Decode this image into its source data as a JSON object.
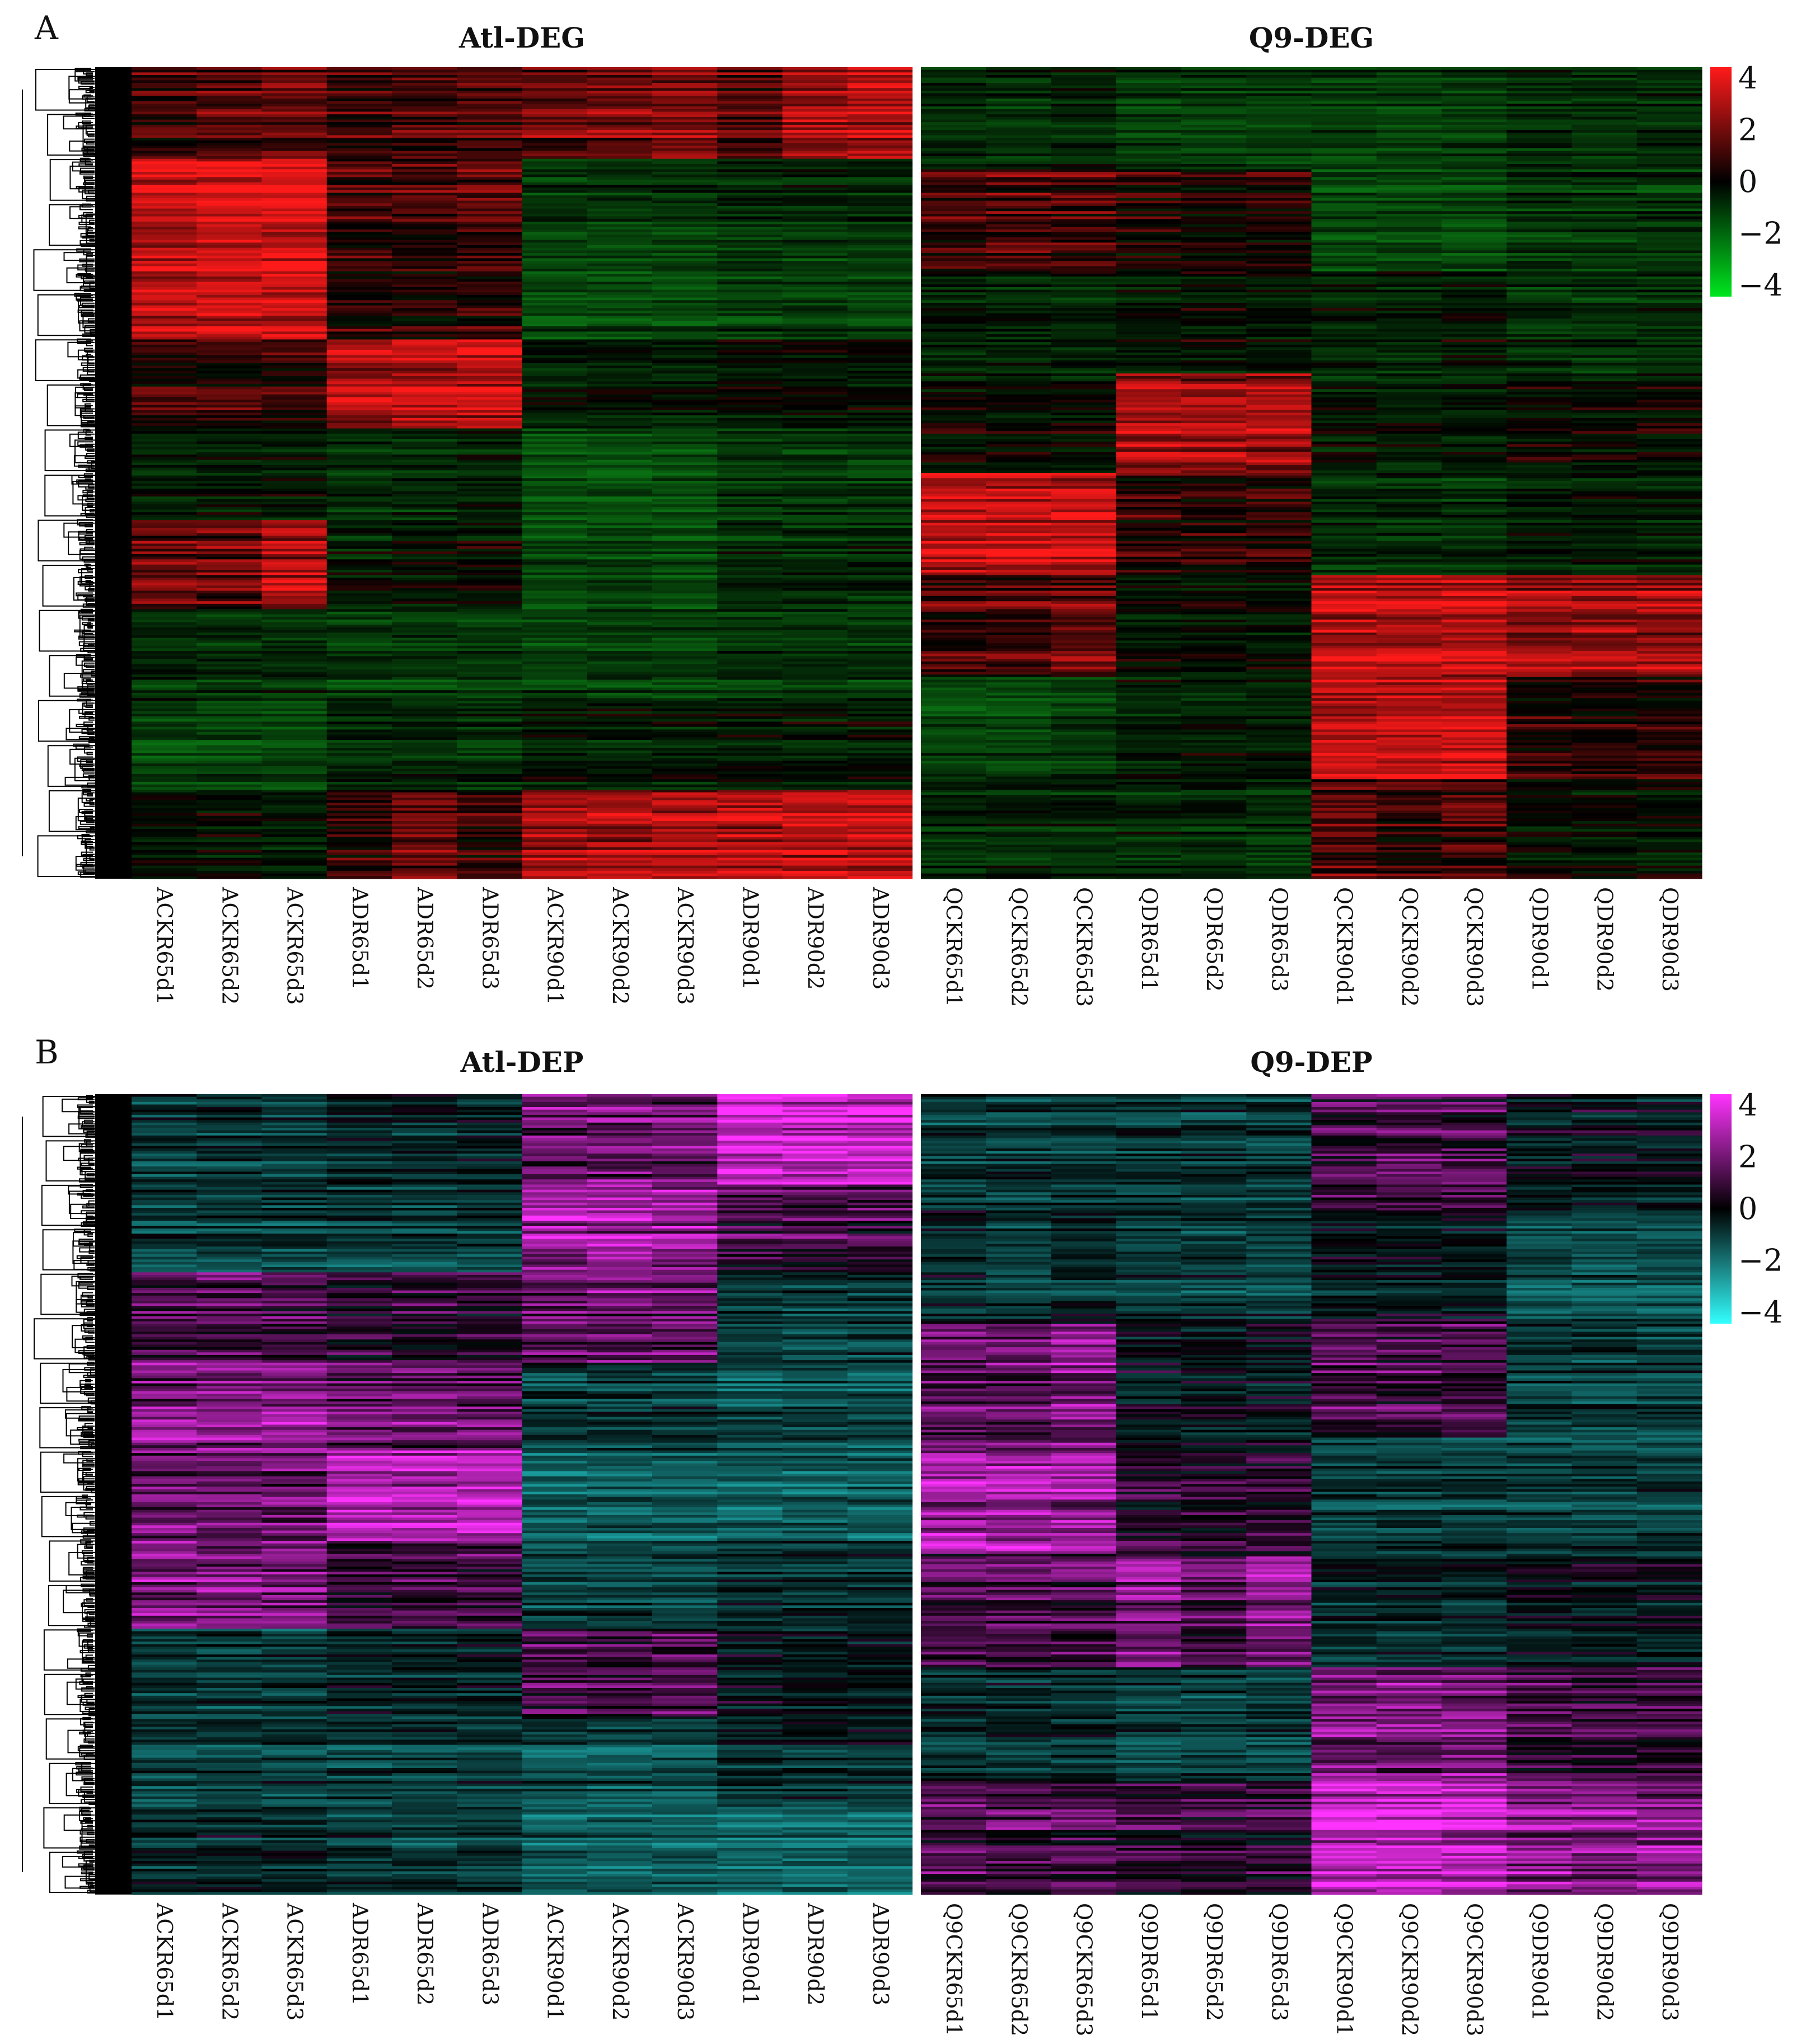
{
  "panels": [
    {
      "id": "A",
      "letter": "A",
      "palette": "red-green",
      "colors": {
        "high": "#ff1a1a",
        "mid": "#000000",
        "low": "#00e61e",
        "base_low": "#0a6e12"
      },
      "chart_data": {
        "type": "heatmap",
        "titles": [
          "Atl-DEG",
          "Q9-DEG"
        ],
        "columns_left": [
          "ACKR65d1",
          "ACKR65d2",
          "ACKR65d3",
          "ADR65d1",
          "ADR65d2",
          "ADR65d3",
          "ACKR90d1",
          "ACKR90d2",
          "ACKR90d3",
          "ADR90d1",
          "ADR90d2",
          "ADR90d3"
        ],
        "columns_right": [
          "QCKR65d1",
          "QCKR65d2",
          "QCKR65d3",
          "QDR65d1",
          "QDR65d2",
          "QDR65d3",
          "QCKR90d1",
          "QCKR90d2",
          "QCKR90d3",
          "QDR90d1",
          "QDR90d2",
          "QDR90d3"
        ],
        "color_scale": {
          "min": -4,
          "max": 4,
          "ticks": [
            "4",
            "2",
            "0",
            "−2",
            "−4"
          ]
        },
        "row_clusters_left": [
          [
            1.0,
            1.2,
            1.5,
            0.8,
            1.0,
            1.2,
            1.5,
            1.8,
            2.0,
            1.2,
            2.5,
            2.8
          ],
          [
            3.0,
            3.1,
            3.3,
            0.8,
            1.0,
            1.2,
            -2.0,
            -2.0,
            -2.0,
            -1.5,
            -1.5,
            -1.5
          ],
          [
            3.2,
            3.2,
            3.5,
            0.5,
            0.6,
            0.8,
            -2.5,
            -2.5,
            -2.5,
            -2.0,
            -2.0,
            -2.0
          ],
          [
            0.5,
            0.6,
            0.6,
            2.5,
            2.8,
            3.0,
            -1.0,
            -1.0,
            -1.0,
            -0.5,
            -0.5,
            -0.5
          ],
          [
            -1.0,
            -1.0,
            -1.0,
            -1.5,
            -1.5,
            -1.2,
            -2.8,
            -2.8,
            -2.8,
            -2.0,
            -2.0,
            -2.0
          ],
          [
            1.5,
            1.5,
            2.5,
            -1.0,
            -0.8,
            -0.5,
            -2.5,
            -2.5,
            -2.5,
            -1.5,
            -1.5,
            -1.5
          ],
          [
            -1.5,
            -1.5,
            -1.5,
            -2.0,
            -2.0,
            -2.0,
            -2.2,
            -2.2,
            -2.2,
            -1.8,
            -1.8,
            -1.8
          ],
          [
            -2.5,
            -2.5,
            -2.5,
            -1.5,
            -1.5,
            -1.5,
            -1.0,
            -1.0,
            -1.0,
            -0.8,
            -0.8,
            -0.8
          ],
          [
            -0.5,
            -0.5,
            -1.0,
            0.5,
            1.5,
            0.8,
            2.5,
            2.5,
            2.5,
            2.8,
            3.0,
            3.0
          ]
        ],
        "row_clusters_right": [
          [
            -1.5,
            -1.5,
            -1.2,
            -2.0,
            -2.0,
            -2.0,
            -2.0,
            -2.0,
            -2.0,
            -1.5,
            -1.5,
            -1.5
          ],
          [
            1.0,
            1.2,
            1.0,
            0.3,
            0.2,
            0.3,
            -2.5,
            -2.5,
            -2.5,
            -1.8,
            -1.8,
            -1.8
          ],
          [
            -1.0,
            -1.0,
            -1.0,
            -0.5,
            -0.5,
            -0.5,
            -1.0,
            -1.0,
            -0.5,
            -1.5,
            -1.5,
            -1.5
          ],
          [
            -0.5,
            -0.5,
            -0.5,
            2.5,
            2.5,
            2.5,
            -1.0,
            -1.0,
            -1.0,
            -0.5,
            -0.5,
            -0.5
          ],
          [
            3.0,
            3.0,
            3.2,
            0.5,
            0.5,
            0.5,
            -1.5,
            -1.5,
            -1.5,
            -1.0,
            -1.0,
            -1.0
          ],
          [
            1.0,
            1.0,
            1.5,
            -0.5,
            -0.5,
            -0.5,
            3.0,
            3.0,
            3.0,
            2.5,
            2.5,
            2.5
          ],
          [
            -2.5,
            -2.5,
            -2.0,
            -1.0,
            -1.0,
            -1.0,
            3.0,
            3.0,
            3.2,
            0.5,
            0.5,
            0.5
          ],
          [
            -1.5,
            -1.5,
            -1.5,
            -1.5,
            -1.5,
            -1.8,
            1.0,
            0.5,
            1.0,
            -0.5,
            -0.5,
            -0.5
          ]
        ]
      }
    },
    {
      "id": "B",
      "letter": "B",
      "palette": "magenta-cyan",
      "colors": {
        "high": "#ff33ff",
        "mid": "#000000",
        "low": "#33ffff",
        "base_low": "#1a9a9a"
      },
      "chart_data": {
        "type": "heatmap",
        "titles": [
          "Atl-DEP",
          "Q9-DEP"
        ],
        "columns_left": [
          "ACKR65d1",
          "ACKR65d2",
          "ACKR65d3",
          "ADR65d1",
          "ADR65d2",
          "ADR65d3",
          "ACKR90d1",
          "ACKR90d2",
          "ACKR90d3",
          "ADR90d1",
          "ADR90d2",
          "ADR90d3"
        ],
        "columns_right": [
          "Q9CKR65d1",
          "Q9CKR65d2",
          "Q9CKR65d3",
          "Q9DR65d1",
          "Q9DR65d2",
          "Q9DR65d3",
          "Q9CKR90d1",
          "Q9CKR90d2",
          "Q9CKR90d3",
          "Q9DR90d1",
          "Q9DR90d2",
          "Q9DR90d3"
        ],
        "color_scale": {
          "min": -4,
          "max": 4,
          "ticks": [
            "4",
            "2",
            "0",
            "−2",
            "−4"
          ]
        },
        "row_clusters_left": [
          [
            -1.5,
            -1.5,
            -1.5,
            -1.0,
            -1.0,
            -1.0,
            1.5,
            1.5,
            1.5,
            3.0,
            3.0,
            3.0
          ],
          [
            -1.5,
            -1.5,
            -1.5,
            -1.5,
            -1.5,
            -1.5,
            2.5,
            2.5,
            2.5,
            1.0,
            1.0,
            1.0
          ],
          [
            1.0,
            1.2,
            1.0,
            0.5,
            0.5,
            0.5,
            1.5,
            1.5,
            1.5,
            -1.5,
            -1.5,
            -1.5
          ],
          [
            2.0,
            2.0,
            2.0,
            1.5,
            1.5,
            1.5,
            -1.5,
            -1.5,
            -1.5,
            -2.0,
            -2.0,
            -2.0
          ],
          [
            1.5,
            1.5,
            1.5,
            2.8,
            2.8,
            2.8,
            -2.5,
            -2.5,
            -2.5,
            -2.5,
            -2.5,
            -2.5
          ],
          [
            2.0,
            2.0,
            2.0,
            1.0,
            1.0,
            1.0,
            -1.5,
            -1.5,
            -1.5,
            -1.0,
            -1.0,
            -1.0
          ],
          [
            -1.5,
            -1.5,
            -1.5,
            -1.0,
            -1.0,
            -1.0,
            1.0,
            1.0,
            1.2,
            -0.5,
            -0.5,
            -0.5
          ],
          [
            -1.5,
            -1.5,
            -1.5,
            -1.5,
            -1.5,
            -1.5,
            -2.0,
            -2.0,
            -2.0,
            -1.0,
            -1.0,
            -1.0
          ],
          [
            -1.0,
            -1.0,
            -1.0,
            -1.5,
            -1.5,
            -1.5,
            -2.5,
            -2.5,
            -2.5,
            -2.8,
            -2.8,
            -2.8
          ]
        ],
        "row_clusters_right": [
          [
            -1.5,
            -1.5,
            -1.5,
            -1.5,
            -1.5,
            -1.5,
            1.0,
            1.0,
            1.0,
            -0.5,
            -0.5,
            -0.5
          ],
          [
            -1.0,
            -1.5,
            -1.0,
            -1.5,
            -1.5,
            -1.5,
            -0.5,
            -0.5,
            -0.5,
            -2.0,
            -2.0,
            -2.0
          ],
          [
            1.5,
            1.5,
            2.0,
            -0.5,
            -0.5,
            -0.5,
            1.0,
            1.0,
            1.0,
            -1.5,
            -1.5,
            -1.5
          ],
          [
            2.5,
            2.5,
            2.5,
            0.5,
            0.5,
            0.5,
            -1.5,
            -1.5,
            -1.5,
            -1.5,
            -1.5,
            -1.5
          ],
          [
            1.0,
            1.0,
            1.0,
            2.0,
            1.0,
            2.0,
            -1.0,
            -1.0,
            -1.0,
            -0.5,
            -0.5,
            -0.5
          ],
          [
            -1.0,
            -1.0,
            -1.0,
            -1.5,
            -1.5,
            -1.5,
            2.0,
            2.0,
            2.0,
            1.0,
            1.0,
            1.0
          ],
          [
            1.0,
            1.0,
            1.0,
            0.5,
            0.5,
            0.5,
            3.0,
            3.0,
            3.0,
            2.0,
            2.0,
            2.0
          ]
        ]
      }
    }
  ]
}
